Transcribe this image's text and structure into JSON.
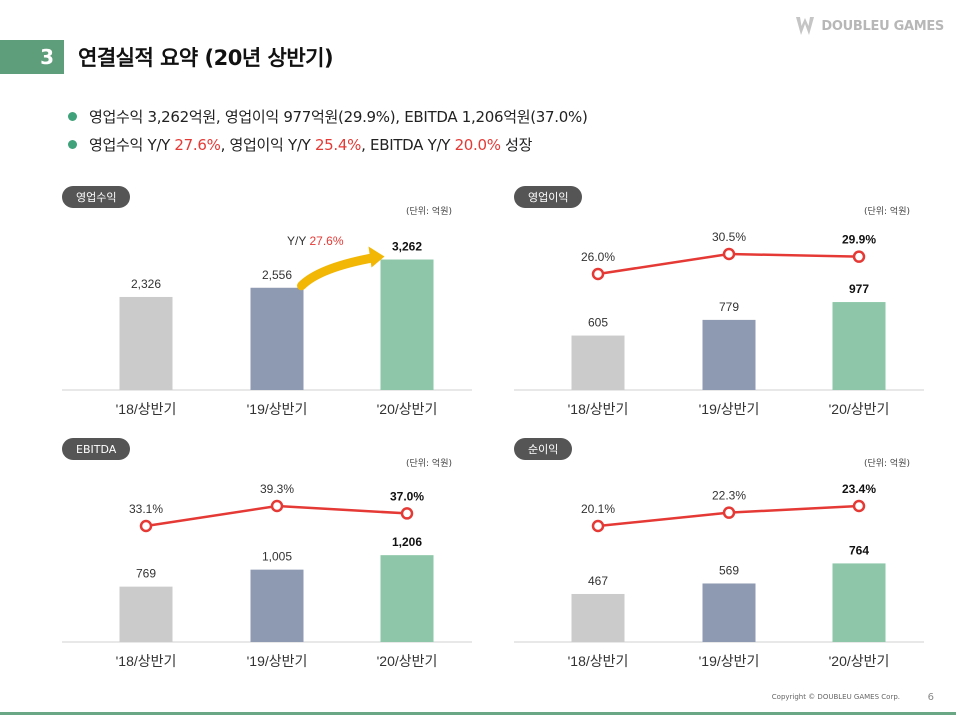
{
  "header": {
    "section_number": "3",
    "title": "연결실적 요약 (20년 상반기)",
    "logo_text": "DOUBLEU GAMES"
  },
  "bullets": [
    {
      "text": "영업수익 3,262억원, 영업이익 977억원(29.9%), EBITDA 1,206억원(37.0%)"
    },
    {
      "segments": [
        {
          "text": "영업수익 Y/Y ",
          "highlight": false
        },
        {
          "text": "27.6%",
          "highlight": true
        },
        {
          "text": ", 영업이익 Y/Y ",
          "highlight": false
        },
        {
          "text": "25.4%",
          "highlight": true
        },
        {
          "text": ", EBITDA Y/Y ",
          "highlight": false
        },
        {
          "text": "20.0%",
          "highlight": true
        },
        {
          "text": " 성장",
          "highlight": false
        }
      ]
    }
  ],
  "colors": {
    "bar_2018": "#cbcbcb",
    "bar_2019": "#8e9ab2",
    "bar_2020": "#8dc6a8",
    "line": "#e53935",
    "accent_green": "#3fa27a",
    "arrow": "#f2b705"
  },
  "chart_data": [
    {
      "type": "bar",
      "tag": "영업수익",
      "unit_label": "(단위: 억원)",
      "categories": [
        "'18/상반기",
        "'19/상반기",
        "'20/상반기"
      ],
      "values": [
        2326,
        2556,
        3262
      ],
      "value_labels": [
        "2,326",
        "2,556",
        "3,262"
      ],
      "ylim": [
        0,
        3600
      ],
      "annotation": {
        "prefix": "Y/Y ",
        "value": "27.6%"
      }
    },
    {
      "type": "bar+line",
      "tag": "영업이익",
      "unit_label": "(단위: 억원)",
      "categories": [
        "'18/상반기",
        "'19/상반기",
        "'20/상반기"
      ],
      "values": [
        605,
        779,
        977
      ],
      "value_labels": [
        "605",
        "779",
        "977"
      ],
      "ylim": [
        0,
        1600
      ],
      "margin_values": [
        26.0,
        30.5,
        29.9
      ],
      "margin_labels": [
        "26.0%",
        "30.5%",
        "29.9%"
      ]
    },
    {
      "type": "bar+line",
      "tag": "EBITDA",
      "unit_label": "(단위: 억원)",
      "categories": [
        "'18/상반기",
        "'19/상반기",
        "'20/상반기"
      ],
      "values": [
        769,
        1005,
        1206
      ],
      "value_labels": [
        "769",
        "1,005",
        "1,206"
      ],
      "ylim": [
        0,
        2000
      ],
      "margin_values": [
        33.1,
        39.3,
        37.0
      ],
      "margin_labels": [
        "33.1%",
        "39.3%",
        "37.0%"
      ]
    },
    {
      "type": "bar+line",
      "tag": "순이익",
      "unit_label": "(단위: 억원)",
      "categories": [
        "'18/상반기",
        "'19/상반기",
        "'20/상반기"
      ],
      "values": [
        467,
        569,
        764
      ],
      "value_labels": [
        "467",
        "569",
        "764"
      ],
      "ylim": [
        0,
        1400
      ],
      "margin_values": [
        20.1,
        22.3,
        23.4
      ],
      "margin_labels": [
        "20.1%",
        "22.3%",
        "23.4%"
      ]
    }
  ],
  "footer": {
    "copyright": "Copyright © DOUBLEU GAMES Corp.",
    "page_number": "6"
  }
}
